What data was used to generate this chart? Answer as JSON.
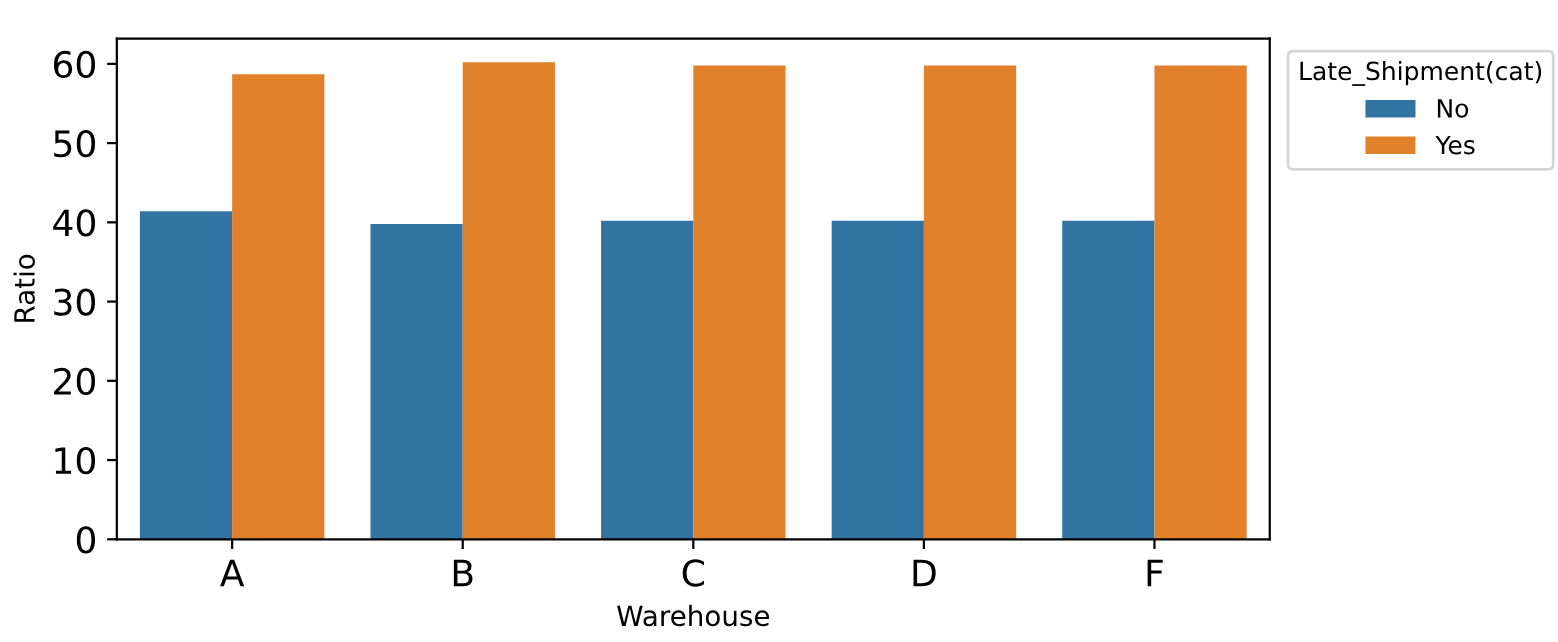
{
  "chart_data": {
    "type": "bar",
    "xlabel": "Warehouse",
    "ylabel": "Ratio",
    "legend_title": "Late_Shipment(cat)",
    "categories": [
      "A",
      "B",
      "C",
      "D",
      "F"
    ],
    "series": [
      {
        "name": "No",
        "color": "#3274a1",
        "values": [
          41.4,
          39.8,
          40.2,
          40.2,
          40.2
        ]
      },
      {
        "name": "Yes",
        "color": "#e1812c",
        "values": [
          58.7,
          60.2,
          59.8,
          59.8,
          59.8
        ]
      }
    ],
    "ylim": [
      0,
      63.2
    ],
    "yticks": [
      0,
      10,
      20,
      30,
      40,
      50,
      60
    ],
    "grid": false,
    "legend": "top right"
  }
}
